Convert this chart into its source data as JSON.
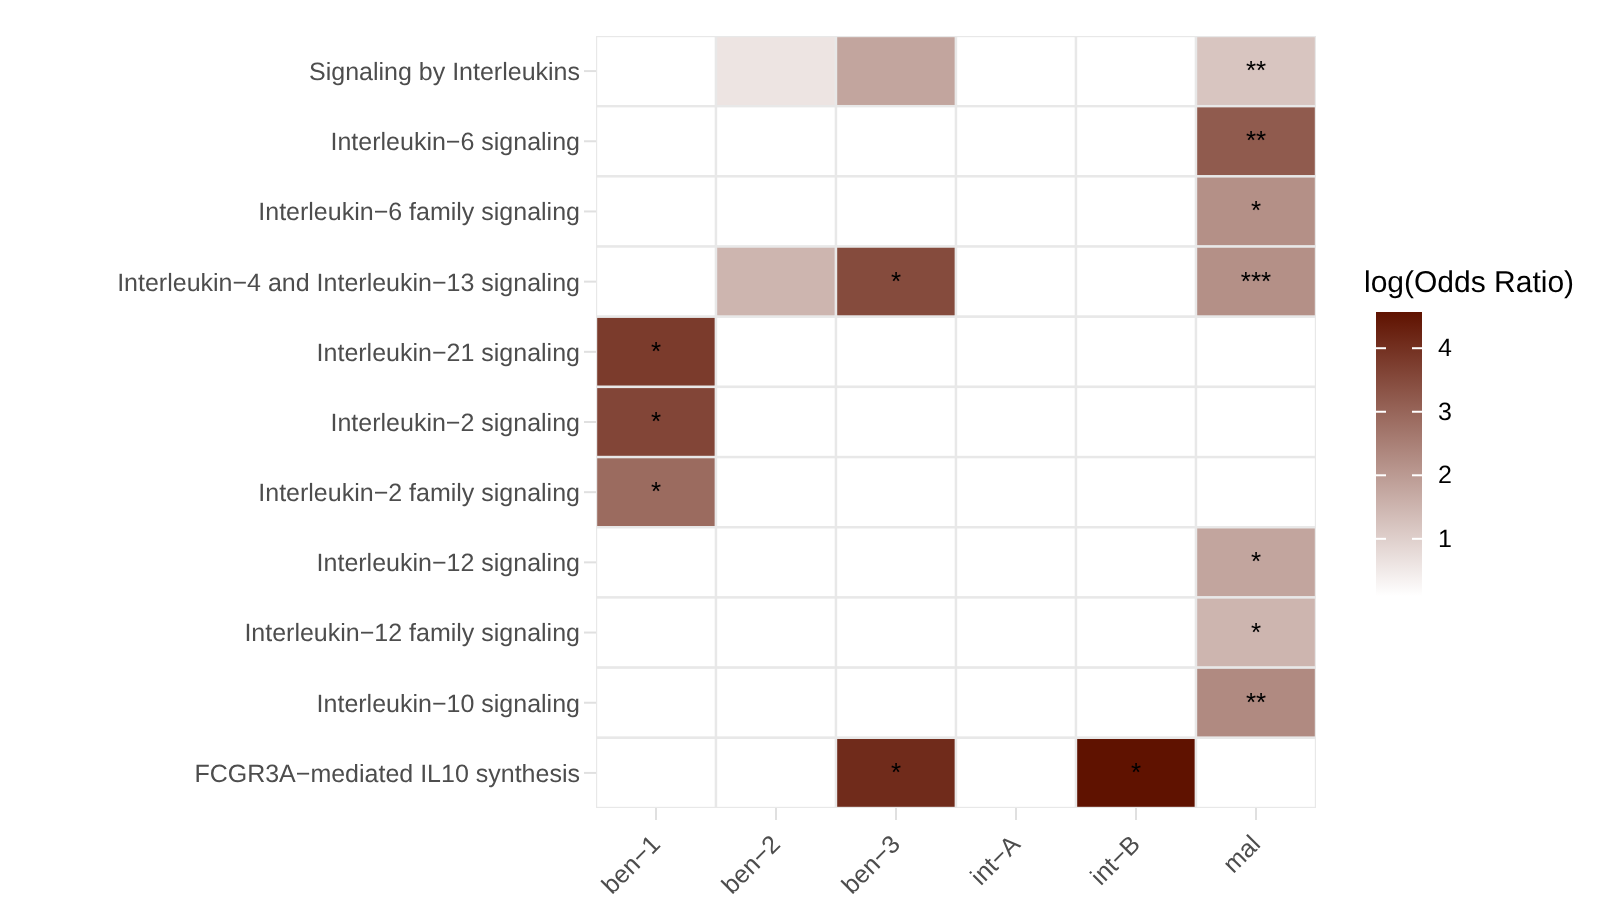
{
  "chart_data": {
    "type": "heatmap",
    "clabel": "log(Odds Ratio)",
    "categories": [
      "ben−1",
      "ben−2",
      "ben−3",
      "int−A",
      "int−B",
      "mal"
    ],
    "y_categories": [
      "Signaling by Interleukins",
      "Interleukin−6 signaling",
      "Interleukin−6 family signaling",
      "Interleukin−4 and Interleukin−13 signaling",
      "Interleukin−21 signaling",
      "Interleukin−2 signaling",
      "Interleukin−2 family signaling",
      "Interleukin−12 signaling",
      "Interleukin−12 family signaling",
      "Interleukin−10 signaling",
      "FCGR3A−mediated IL10 synthesis"
    ],
    "cells": [
      [
        0.1,
        0.6,
        1.8,
        null,
        null,
        1.2
      ],
      [
        null,
        null,
        null,
        null,
        null,
        3.2
      ],
      [
        null,
        null,
        null,
        null,
        null,
        2.2
      ],
      [
        null,
        1.5,
        3.5,
        null,
        null,
        2.2
      ],
      [
        3.8,
        null,
        null,
        null,
        null,
        null
      ],
      [
        3.6,
        null,
        null,
        null,
        null,
        null
      ],
      [
        2.9,
        null,
        null,
        null,
        null,
        null
      ],
      [
        null,
        null,
        null,
        null,
        null,
        1.8
      ],
      [
        null,
        null,
        null,
        null,
        null,
        1.5
      ],
      [
        null,
        null,
        null,
        null,
        null,
        2.3
      ],
      [
        null,
        null,
        4.1,
        null,
        4.57,
        null
      ]
    ],
    "cell_labels": [
      [
        null,
        null,
        null,
        null,
        null,
        "**"
      ],
      [
        null,
        null,
        null,
        null,
        null,
        "**"
      ],
      [
        null,
        null,
        null,
        null,
        null,
        "*"
      ],
      [
        null,
        null,
        "*",
        null,
        null,
        "***"
      ],
      [
        "*",
        null,
        null,
        null,
        null,
        null
      ],
      [
        "*",
        null,
        null,
        null,
        null,
        null
      ],
      [
        "*",
        null,
        null,
        null,
        null,
        null
      ],
      [
        null,
        null,
        null,
        null,
        null,
        "*"
      ],
      [
        null,
        null,
        null,
        null,
        null,
        "*"
      ],
      [
        null,
        null,
        null,
        null,
        null,
        "**"
      ],
      [
        null,
        null,
        "*",
        null,
        "*",
        null
      ]
    ],
    "clim": [
      0.1,
      4.57
    ],
    "cticks": [
      1,
      2,
      3,
      4
    ],
    "colors": [
      "#ffffff",
      "#5f1200"
    ]
  }
}
